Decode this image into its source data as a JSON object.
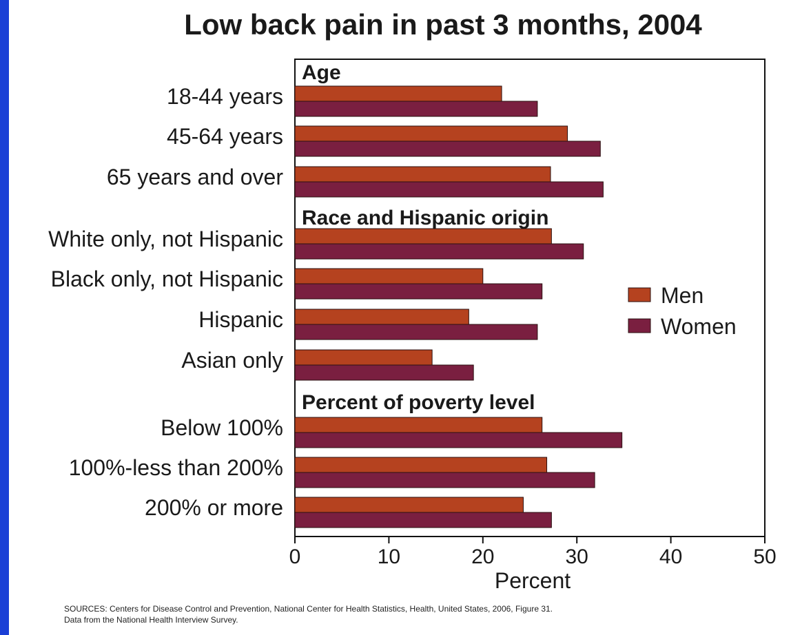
{
  "chart_data": {
    "type": "bar",
    "orientation": "horizontal",
    "title": "Low back pain in past 3 months, 2004",
    "xlabel": "Percent",
    "xlim": [
      0,
      50
    ],
    "xticks": [
      "0",
      "10",
      "20",
      "30",
      "40",
      "50"
    ],
    "legend_position": "right",
    "groups": [
      {
        "label": "Age",
        "categories": [
          "18-44 years",
          "45-64 years",
          "65 years and over"
        ]
      },
      {
        "label": "Race and Hispanic origin",
        "categories": [
          "White only, not Hispanic",
          "Black only, not Hispanic",
          "Hispanic",
          "Asian only"
        ]
      },
      {
        "label": "Percent of poverty level",
        "categories": [
          "Below 100%",
          "100%-less than 200%",
          "200% or more"
        ]
      }
    ],
    "categories": [
      "18-44 years",
      "45-64 years",
      "65 years and over",
      "White only, not Hispanic",
      "Black only, not Hispanic",
      "Hispanic",
      "Asian only",
      "Below 100%",
      "100%-less than 200%",
      "200% or more"
    ],
    "series": [
      {
        "name": "Men",
        "color": "#b5421f",
        "values": [
          22.0,
          29.0,
          27.2,
          27.3,
          20.0,
          18.5,
          14.6,
          26.3,
          26.8,
          24.3
        ]
      },
      {
        "name": "Women",
        "color": "#7a1f40",
        "values": [
          25.8,
          32.5,
          32.8,
          30.7,
          26.3,
          25.8,
          19.0,
          34.8,
          31.9,
          27.3
        ]
      }
    ]
  },
  "source_note": {
    "line1": "SOURCES: Centers for Disease Control and Prevention, National Center for Health Statistics, Health, United States, 2006, Figure 31.",
    "line2": "Data from the National Health Interview Survey."
  }
}
